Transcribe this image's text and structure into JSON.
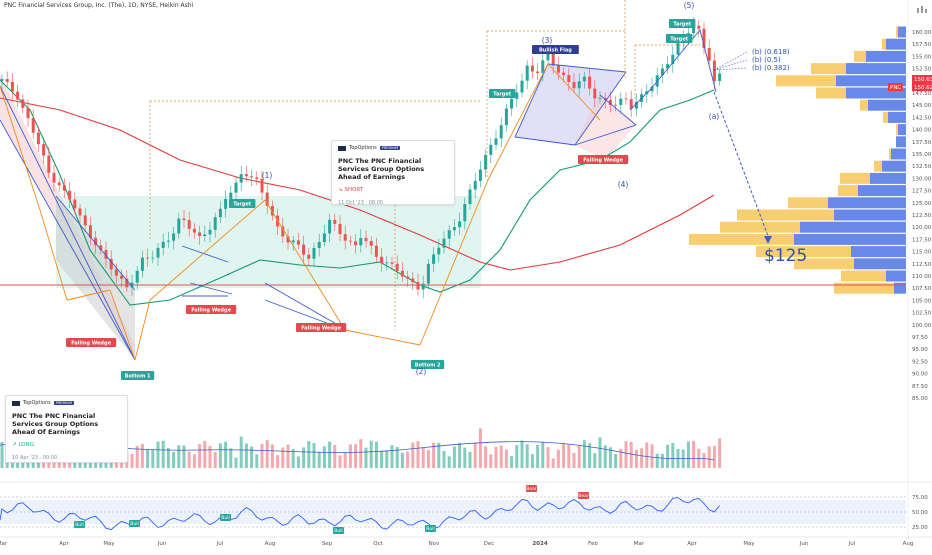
{
  "header": {
    "title": "PNC Financial Services Group, Inc. (The), 1D, NYSE, Heikin Ashi"
  },
  "ideas": [
    {
      "brand": "TopOptions",
      "badge": "PREMIUM",
      "title_line1": "PNC The PNC Financial Services Group Options",
      "title_line2": "Ahead of Earnings",
      "direction": "↘ SHORT",
      "direction_color": "#e5484d",
      "meta": "11 Oct '23 · 08:05"
    },
    {
      "brand": "TopOptions",
      "badge": "PREMIUM",
      "title_line1": "PNC The PNC Financial Services Group Options",
      "title_line2": "Ahead Of Earnings",
      "direction": "↗ LONG",
      "direction_color": "#22ab94",
      "meta": "10 Apr '23 · 00:00"
    }
  ],
  "chart_data": {
    "type": "candlestick",
    "symbol": "PNC",
    "title": "PNC Financial Services Group, Inc. (The), 1D, NYSE, Heikin Ashi",
    "x_tick_labels": [
      "Mar",
      "Apr",
      "May",
      "Jun",
      "Jul",
      "Aug",
      "Sep",
      "Oct",
      "Nov",
      "Dec",
      "2024",
      "Feb",
      "Mar",
      "Apr",
      "May",
      "Jun",
      "Jul",
      "Aug"
    ],
    "y_tick_labels": [
      "160.00",
      "157.50",
      "155.00",
      "152.50",
      "150.00",
      "147.50",
      "145.00",
      "142.50",
      "140.00",
      "137.50",
      "135.00",
      "132.50",
      "130.00",
      "127.50",
      "125.00",
      "122.50",
      "120.00",
      "117.50",
      "115.00",
      "112.50",
      "110.00",
      "107.50",
      "105.00",
      "102.50",
      "100.00",
      "97.50",
      "95.00",
      "92.50",
      "90.00",
      "87.50",
      "85.00"
    ],
    "ylim": [
      84,
      163
    ],
    "price_labels": [
      {
        "text": "150.63",
        "value": 150.63,
        "color": "#f23645"
      },
      {
        "text": "150.62",
        "value": 150.62,
        "color": "#f23645"
      },
      {
        "text": "PNC",
        "value": 150.0,
        "color": "#f23645"
      }
    ],
    "price_path": [
      [
        0,
        150
      ],
      [
        3,
        147
      ],
      [
        5,
        142
      ],
      [
        7,
        137
      ],
      [
        9,
        131
      ],
      [
        11,
        129
      ],
      [
        12,
        127
      ],
      [
        14,
        124
      ],
      [
        16,
        120
      ],
      [
        18,
        117
      ],
      [
        20,
        113
      ],
      [
        22,
        110
      ],
      [
        24,
        108
      ],
      [
        26,
        111
      ],
      [
        27,
        113
      ],
      [
        29,
        114
      ],
      [
        31,
        117
      ],
      [
        33,
        119
      ],
      [
        34,
        121
      ],
      [
        35,
        121
      ],
      [
        37,
        119
      ],
      [
        38,
        118
      ],
      [
        40,
        120
      ],
      [
        42,
        123
      ],
      [
        43,
        126
      ],
      [
        45,
        129
      ],
      [
        46,
        131
      ],
      [
        47,
        131
      ],
      [
        49,
        129
      ],
      [
        51,
        125
      ],
      [
        53,
        120
      ],
      [
        55,
        117
      ],
      [
        57,
        116
      ],
      [
        59,
        114
      ],
      [
        61,
        117
      ],
      [
        62,
        119
      ],
      [
        63,
        121
      ],
      [
        64,
        120
      ],
      [
        66,
        118
      ],
      [
        68,
        116
      ],
      [
        69,
        118
      ],
      [
        70,
        117
      ],
      [
        72,
        114
      ],
      [
        74,
        113
      ],
      [
        76,
        111
      ],
      [
        78,
        109
      ],
      [
        80,
        108
      ],
      [
        81,
        109
      ],
      [
        82,
        112
      ],
      [
        84,
        116
      ],
      [
        86,
        119
      ],
      [
        88,
        122
      ],
      [
        90,
        127
      ],
      [
        92,
        132
      ],
      [
        94,
        137
      ],
      [
        96,
        141
      ],
      [
        98,
        146
      ],
      [
        99,
        148
      ],
      [
        100,
        150
      ],
      [
        101,
        153
      ],
      [
        103,
        152
      ],
      [
        105,
        155
      ],
      [
        107,
        152
      ],
      [
        109,
        150
      ],
      [
        110,
        149
      ],
      [
        112,
        150
      ],
      [
        114,
        147
      ],
      [
        116,
        146
      ],
      [
        118,
        145
      ],
      [
        120,
        146
      ],
      [
        121,
        145
      ],
      [
        123,
        147
      ],
      [
        125,
        149
      ],
      [
        127,
        152
      ],
      [
        129,
        156
      ],
      [
        131,
        159
      ],
      [
        133,
        161
      ],
      [
        134,
        160
      ],
      [
        135,
        157
      ],
      [
        136,
        155
      ],
      [
        137,
        150
      ],
      [
        138,
        151
      ]
    ],
    "markers": [
      {
        "label": "Falling Wedge",
        "type": "red"
      },
      {
        "label": "Bottom 1",
        "type": "green"
      },
      {
        "label": "Falling Wedge",
        "type": "red"
      },
      {
        "label": "Target",
        "type": "green"
      },
      {
        "label": "Falling Wedge",
        "type": "red"
      },
      {
        "label": "Bottom 2",
        "type": "green"
      },
      {
        "label": "Target",
        "type": "green"
      },
      {
        "label": "Bullish Flag",
        "type": "navy"
      },
      {
        "label": "Falling Wedge",
        "type": "red"
      },
      {
        "label": "Target",
        "type": "green"
      },
      {
        "label": "Target",
        "type": "green"
      }
    ],
    "wave_labels": [
      "(1)",
      "(2)",
      "(3)",
      "(4)",
      "(5)",
      "(a)"
    ],
    "fib_labels": [
      "(b) (0.618)",
      "(b) (0.5)",
      "(b) (0.382)"
    ],
    "target_annotation": "$125",
    "volume_profile_levels": [
      107.5,
      110,
      112.5,
      115,
      117.5,
      120,
      122.5,
      125,
      127.5,
      130,
      132.5,
      135,
      137.5,
      140,
      142.5,
      145,
      147.5,
      150,
      152.5,
      155,
      157.5,
      160
    ],
    "rsi": {
      "y_tick_labels": [
        "75.00",
        "50.00",
        "25.00"
      ],
      "ylim": [
        10,
        90
      ],
      "signal_labels": [
        {
          "label": "Bull",
          "type": "green"
        },
        {
          "label": "Bull",
          "type": "green"
        },
        {
          "label": "Bull",
          "type": "green"
        },
        {
          "label": "Bull",
          "type": "green"
        },
        {
          "label": "Bull",
          "type": "green"
        },
        {
          "label": "Bear",
          "type": "red"
        },
        {
          "label": "Bear",
          "type": "red"
        }
      ]
    }
  }
}
